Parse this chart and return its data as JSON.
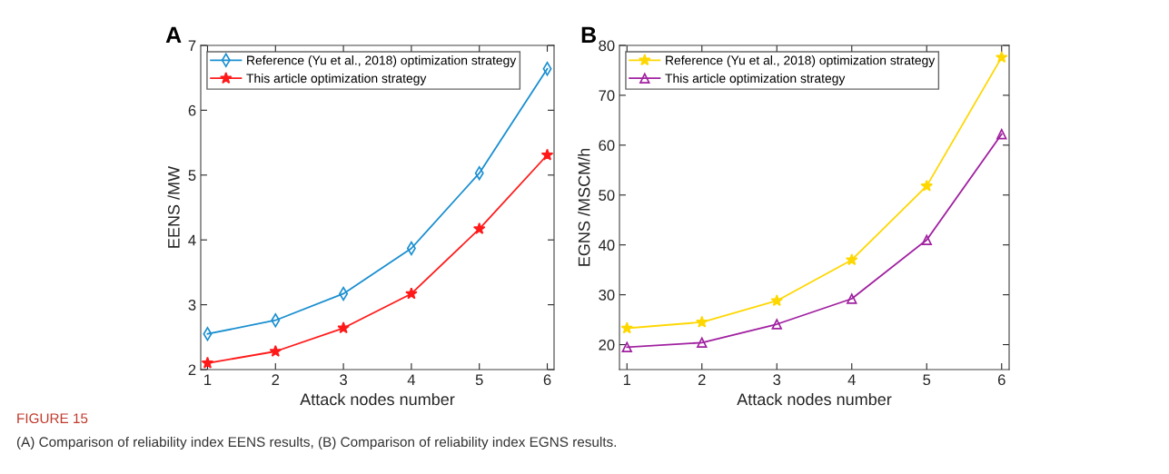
{
  "chart_data": [
    {
      "type": "line",
      "title": "A",
      "xlabel": "Attack nodes number",
      "ylabel": "EENS /MW",
      "x": [
        1,
        2,
        3,
        4,
        5,
        6
      ],
      "xlim": [
        0.9,
        6.1
      ],
      "xticks": [
        1,
        2,
        3,
        4,
        5,
        6
      ],
      "ylim": [
        2,
        7
      ],
      "yticks": [
        2,
        3,
        4,
        5,
        6,
        7
      ],
      "legend": "top left",
      "grid": false,
      "series": [
        {
          "name": "Reference (Yu et al., 2018) optimization strategy",
          "color": "#1a8fd0",
          "marker": "diamond",
          "values": [
            2.55,
            2.76,
            3.17,
            3.87,
            5.03,
            6.64
          ]
        },
        {
          "name": "This article optimization strategy",
          "color": "#ff1a1a",
          "marker": "star",
          "values": [
            2.1,
            2.28,
            2.64,
            3.17,
            4.17,
            5.31
          ]
        }
      ],
      "annotations": [
        "FIGURE 15",
        "(A) Comparison of reliability index EENS results, (B) Comparison of reliability index EGNS results."
      ]
    },
    {
      "type": "line",
      "title": "B",
      "xlabel": "Attack nodes number",
      "ylabel": "EGNS /MSCM/h",
      "x": [
        1,
        2,
        3,
        4,
        5,
        6
      ],
      "xlim": [
        0.9,
        6.1
      ],
      "xticks": [
        1,
        2,
        3,
        4,
        5,
        6
      ],
      "ylim": [
        15,
        80
      ],
      "yticks": [
        20,
        30,
        40,
        50,
        60,
        70,
        80
      ],
      "legend": "top left",
      "grid": false,
      "series": [
        {
          "name": "Reference (Yu et al., 2018) optimization strategy",
          "color": "#ffd700",
          "marker": "star",
          "values": [
            23.3,
            24.5,
            28.8,
            37.0,
            51.8,
            77.6
          ]
        },
        {
          "name": "This article optimization strategy",
          "color": "#a020a0",
          "marker": "triangle",
          "values": [
            19.5,
            20.4,
            24.1,
            29.2,
            41.0,
            62.2
          ]
        }
      ]
    }
  ]
}
